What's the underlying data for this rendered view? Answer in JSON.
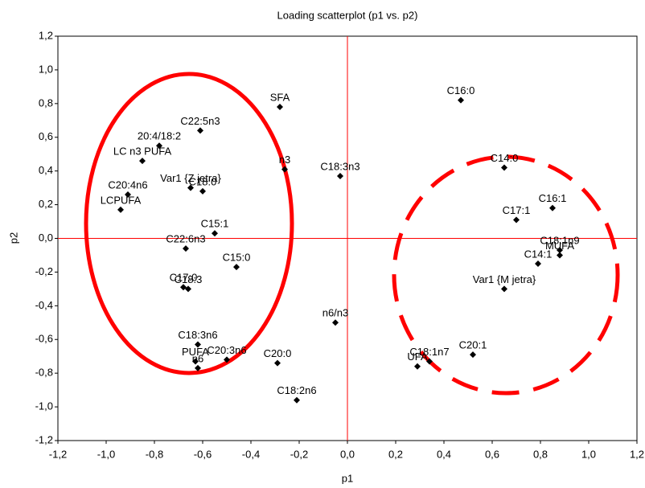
{
  "chart_data": {
    "type": "scatter",
    "title": "Loading scatterplot (p1 vs. p2)",
    "x_label": "p1",
    "y_label": "p2",
    "color": "#000000",
    "line_color": "#ff0000",
    "labels": [
      "SFA",
      "C16:0",
      "C22:5n3",
      "20:4/18:2",
      "LC n3 PUFA",
      "n3",
      "C18:3n3",
      "C14:0",
      "Var1 {Z jetra}",
      "C18:0",
      "C20:4n6",
      "LCPUFA",
      "C16:1",
      "C17:1",
      "C15:1",
      "C18:1n9",
      "MUFA",
      "C14:1",
      "C22:6n3",
      "C15:0",
      "C17:0",
      "C18:3",
      "Var1 {M jetra}",
      "n6/n3",
      "C18:3n6",
      "PUFA",
      "n6",
      "C20:3n6",
      "C20:0",
      "C20:1",
      "C18:1n7",
      "UFA",
      "C18:2n6"
    ],
    "x": [
      -0.28,
      0.47,
      -0.61,
      -0.78,
      -0.85,
      -0.26,
      -0.03,
      0.65,
      -0.65,
      -0.6,
      -0.91,
      -0.94,
      0.85,
      0.7,
      -0.55,
      0.88,
      0.88,
      0.79,
      -0.67,
      -0.46,
      -0.68,
      -0.66,
      0.65,
      -0.05,
      -0.62,
      -0.63,
      -0.62,
      -0.5,
      -0.29,
      0.52,
      0.34,
      0.29,
      -0.21
    ],
    "values": [
      0.78,
      0.82,
      0.64,
      0.55,
      0.46,
      0.41,
      0.37,
      0.42,
      0.3,
      0.28,
      0.26,
      0.17,
      0.18,
      0.11,
      0.03,
      -0.07,
      -0.1,
      -0.15,
      -0.06,
      -0.17,
      -0.29,
      -0.3,
      -0.3,
      -0.5,
      -0.63,
      -0.73,
      -0.77,
      -0.72,
      -0.74,
      -0.69,
      -0.73,
      -0.76,
      -0.96
    ],
    "xlim": [
      -1.2,
      1.2
    ],
    "ylim": [
      -1.2,
      1.2
    ],
    "xticks": [
      {
        "value": -1.2,
        "label": "-1,2"
      },
      {
        "value": -1.0,
        "label": "-1,0"
      },
      {
        "value": -0.8,
        "label": "-0,8"
      },
      {
        "value": -0.6,
        "label": "-0,6"
      },
      {
        "value": -0.4,
        "label": "-0,4"
      },
      {
        "value": -0.2,
        "label": "-0,2"
      },
      {
        "value": 0,
        "label": "0,0"
      },
      {
        "value": 0.2,
        "label": "0,2"
      },
      {
        "value": 0.4,
        "label": "0,4"
      },
      {
        "value": 0.6,
        "label": "0,6"
      },
      {
        "value": 0.8,
        "label": "0,8"
      },
      {
        "value": 1.0,
        "label": "1,0"
      },
      {
        "value": 1.2,
        "label": "1,2"
      }
    ],
    "yticks": [
      {
        "value": -1.2,
        "label": "-1,2"
      },
      {
        "value": -1.0,
        "label": "-1,0"
      },
      {
        "value": -0.8,
        "label": "-0,8"
      },
      {
        "value": -0.6,
        "label": "-0,6"
      },
      {
        "value": -0.4,
        "label": "-0,4"
      },
      {
        "value": -0.2,
        "label": "-0,2"
      },
      {
        "value": 0,
        "label": "0,0"
      },
      {
        "value": 0.2,
        "label": "0,2"
      },
      {
        "value": 0.4,
        "label": "0,4"
      },
      {
        "value": 0.6,
        "label": "0,6"
      },
      {
        "value": 0.8,
        "label": "0,8"
      },
      {
        "value": 1.0,
        "label": "1,0"
      },
      {
        "value": 1.2,
        "label": "1,2"
      }
    ]
  }
}
